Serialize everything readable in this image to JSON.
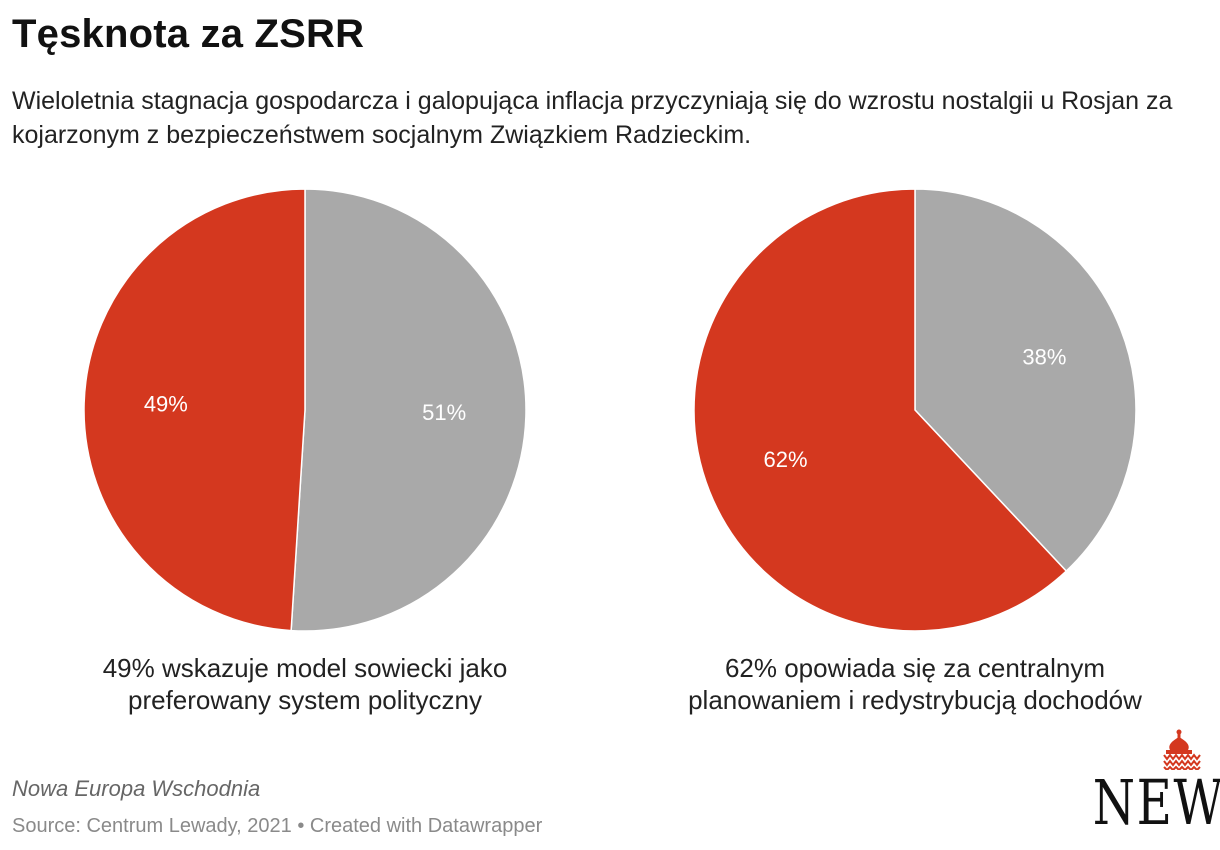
{
  "title": "Tęsknota za ZSRR",
  "subtitle": "Wieloletnia stagnacja gospodarcza i galopująca inflacja przyczyniają się do wzrostu nostalgii u Rosjan za kojarzonym z bezpieczeństwem socjalnym Związkiem Radzieckim.",
  "colors": {
    "highlight": "#d4381f",
    "rest": "#a9a9a9"
  },
  "chart_data": [
    {
      "type": "pie",
      "slices": [
        {
          "label": "49%",
          "value": 49,
          "color": "#d4381f"
        },
        {
          "label": "51%",
          "value": 51,
          "color": "#a9a9a9"
        }
      ],
      "caption": [
        "49% wskazuje model sowiecki jako",
        "preferowany system polityczny"
      ]
    },
    {
      "type": "pie",
      "slices": [
        {
          "label": "62%",
          "value": 62,
          "color": "#d4381f"
        },
        {
          "label": "38%",
          "value": 38,
          "color": "#a9a9a9"
        }
      ],
      "caption": [
        "62% opowiada się za centralnym",
        "planowaniem i redystrybucją dochodów"
      ]
    }
  ],
  "footer": {
    "brand": "Nowa Europa Wschodnia",
    "source": "Source: Centrum Lewady, 2021 • Created with Datawrapper"
  },
  "logo": {
    "text": "NEW"
  }
}
